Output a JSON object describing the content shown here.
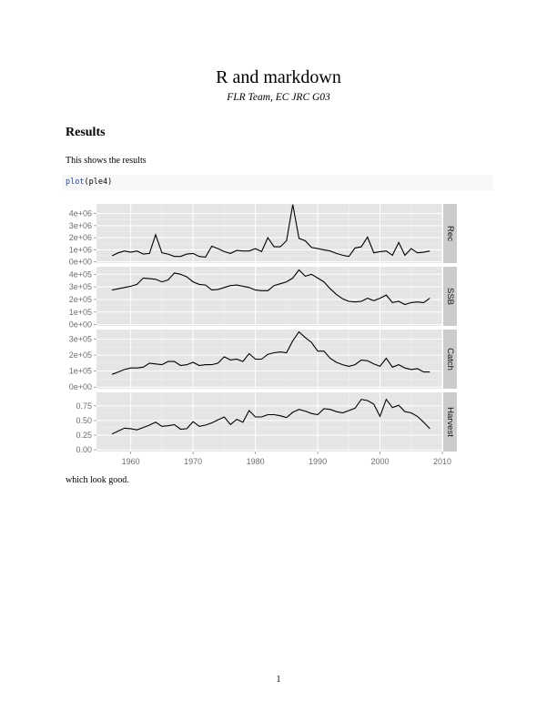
{
  "document": {
    "title": "R and markdown",
    "subtitle": "FLR Team, EC JRC G03",
    "section_heading": "Results",
    "intro_text": "This shows the results",
    "code": {
      "function": "plot",
      "open": "(",
      "argument": "ple4",
      "close": ")"
    },
    "outro_text": "which look good.",
    "page_number": "1"
  },
  "chart_data": {
    "type": "line",
    "facet_layout": "vertical",
    "grid": true,
    "x": [
      1957,
      1958,
      1959,
      1960,
      1961,
      1962,
      1963,
      1964,
      1965,
      1966,
      1967,
      1968,
      1969,
      1970,
      1971,
      1972,
      1973,
      1974,
      1975,
      1976,
      1977,
      1978,
      1979,
      1980,
      1981,
      1982,
      1983,
      1984,
      1985,
      1986,
      1987,
      1988,
      1989,
      1990,
      1991,
      1992,
      1993,
      1994,
      1995,
      1996,
      1997,
      1998,
      1999,
      2000,
      2001,
      2002,
      2003,
      2004,
      2005,
      2006,
      2007,
      2008
    ],
    "x_ticks": [
      "1960",
      "1970",
      "1980",
      "1990",
      "2000",
      "2010"
    ],
    "x_tick_values": [
      1960,
      1970,
      1980,
      1990,
      2000,
      2010
    ],
    "xlim": [
      1954.5,
      2010
    ],
    "panels": [
      {
        "name": "Rec",
        "ylim": [
          -100000,
          4800000
        ],
        "y_ticks": [
          "0e+00",
          "1e+06",
          "2e+06",
          "3e+06",
          "4e+06"
        ],
        "y_tick_values": [
          0,
          1000000,
          2000000,
          3000000,
          4000000
        ],
        "values": [
          500000,
          750000,
          900000,
          800000,
          900000,
          650000,
          700000,
          2250000,
          750000,
          650000,
          450000,
          450000,
          650000,
          700000,
          450000,
          400000,
          1300000,
          1100000,
          850000,
          700000,
          950000,
          900000,
          900000,
          1100000,
          850000,
          2000000,
          1250000,
          1250000,
          1750000,
          4750000,
          1950000,
          1750000,
          1200000,
          1100000,
          1000000,
          900000,
          700000,
          550000,
          450000,
          1150000,
          1250000,
          2050000,
          750000,
          850000,
          900000,
          550000,
          1600000,
          550000,
          1100000,
          750000,
          800000,
          900000
        ],
        "values_tail": [
          850000
        ]
      },
      {
        "name": "SSB",
        "ylim": [
          -10000,
          460000
        ],
        "y_ticks": [
          "0e+00",
          "1e+05",
          "2e+05",
          "3e+05",
          "4e+05"
        ],
        "y_tick_values": [
          0,
          100000,
          200000,
          300000,
          400000
        ],
        "values": [
          275000,
          285000,
          295000,
          305000,
          320000,
          370000,
          365000,
          360000,
          340000,
          355000,
          410000,
          400000,
          380000,
          340000,
          320000,
          315000,
          275000,
          280000,
          295000,
          310000,
          315000,
          305000,
          295000,
          275000,
          270000,
          270000,
          310000,
          325000,
          340000,
          370000,
          435000,
          385000,
          400000,
          370000,
          340000,
          285000,
          240000,
          205000,
          185000,
          180000,
          185000,
          210000,
          190000,
          210000,
          235000,
          175000,
          185000,
          160000,
          175000,
          180000,
          175000,
          210000
        ]
      },
      {
        "name": "Catch",
        "ylim": [
          -10000,
          360000
        ],
        "y_ticks": [
          "0e+00",
          "1e+05",
          "2e+05",
          "3e+05"
        ],
        "y_tick_values": [
          0,
          100000,
          200000,
          300000
        ],
        "values": [
          80000,
          95000,
          110000,
          120000,
          120000,
          125000,
          150000,
          145000,
          140000,
          160000,
          160000,
          135000,
          140000,
          155000,
          135000,
          140000,
          140000,
          150000,
          190000,
          170000,
          175000,
          160000,
          210000,
          175000,
          175000,
          205000,
          215000,
          220000,
          215000,
          290000,
          345000,
          310000,
          280000,
          225000,
          225000,
          180000,
          155000,
          140000,
          130000,
          140000,
          170000,
          165000,
          145000,
          130000,
          180000,
          125000,
          140000,
          120000,
          110000,
          115000,
          95000,
          95000
        ]
      },
      {
        "name": "Harvest",
        "ylim": [
          -0.03,
          0.98
        ],
        "y_ticks": [
          "0.00",
          "0.25",
          "0.50",
          "0.75"
        ],
        "y_tick_values": [
          0,
          0.25,
          0.5,
          0.75
        ],
        "values": [
          0.27,
          0.32,
          0.37,
          0.36,
          0.34,
          0.38,
          0.42,
          0.47,
          0.4,
          0.41,
          0.43,
          0.35,
          0.36,
          0.48,
          0.4,
          0.42,
          0.46,
          0.51,
          0.56,
          0.43,
          0.52,
          0.47,
          0.67,
          0.56,
          0.56,
          0.6,
          0.6,
          0.58,
          0.55,
          0.64,
          0.69,
          0.66,
          0.62,
          0.6,
          0.7,
          0.69,
          0.65,
          0.63,
          0.67,
          0.71,
          0.86,
          0.84,
          0.78,
          0.57,
          0.86,
          0.72,
          0.76,
          0.65,
          0.63,
          0.57,
          0.47,
          0.36
        ]
      }
    ]
  }
}
